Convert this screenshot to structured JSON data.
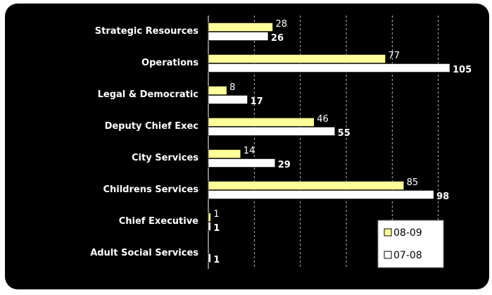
{
  "chart_data": {
    "type": "bar",
    "orientation": "horizontal",
    "categories": [
      "Strategic Resources",
      "Operations",
      "Legal & Democratic",
      "Deputy Chief Exec",
      "City Services",
      "Childrens Services",
      "Chief Executive",
      "Adult Social Services"
    ],
    "series": [
      {
        "name": "08-09",
        "color": "#ffff99",
        "values": [
          28,
          77,
          8,
          46,
          14,
          85,
          1,
          null
        ]
      },
      {
        "name": "07-08",
        "color": "#ffffff",
        "values": [
          26,
          105,
          17,
          55,
          29,
          98,
          1,
          1
        ]
      }
    ],
    "xlim": [
      0,
      120
    ],
    "xticks": [
      20,
      40,
      60,
      80,
      100
    ],
    "grid": true,
    "legend": "lower right"
  }
}
